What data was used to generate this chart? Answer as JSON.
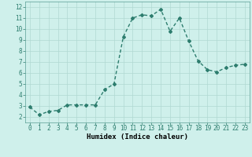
{
  "x": [
    0,
    1,
    2,
    3,
    4,
    5,
    6,
    7,
    8,
    9,
    10,
    11,
    12,
    13,
    14,
    15,
    16,
    17,
    18,
    19,
    20,
    21,
    22,
    23
  ],
  "y": [
    2.9,
    2.2,
    2.5,
    2.6,
    3.1,
    3.1,
    3.1,
    3.1,
    4.5,
    5.0,
    9.3,
    11.0,
    11.3,
    11.2,
    11.8,
    9.8,
    11.0,
    8.9,
    7.1,
    6.3,
    6.1,
    6.5,
    6.7,
    6.8
  ],
  "line_color": "#2d7d6e",
  "marker": "D",
  "marker_size": 2.0,
  "bg_color": "#cff0eb",
  "grid_color": "#b0d8d2",
  "xlabel": "Humidex (Indice chaleur)",
  "xlim": [
    -0.5,
    23.5
  ],
  "ylim": [
    1.5,
    12.5
  ],
  "yticks": [
    2,
    3,
    4,
    5,
    6,
    7,
    8,
    9,
    10,
    11,
    12
  ],
  "xticks": [
    0,
    1,
    2,
    3,
    4,
    5,
    6,
    7,
    8,
    9,
    10,
    11,
    12,
    13,
    14,
    15,
    16,
    17,
    18,
    19,
    20,
    21,
    22,
    23
  ],
  "tick_label_size": 5.5,
  "xlabel_size": 6.5,
  "line_width": 1.0
}
